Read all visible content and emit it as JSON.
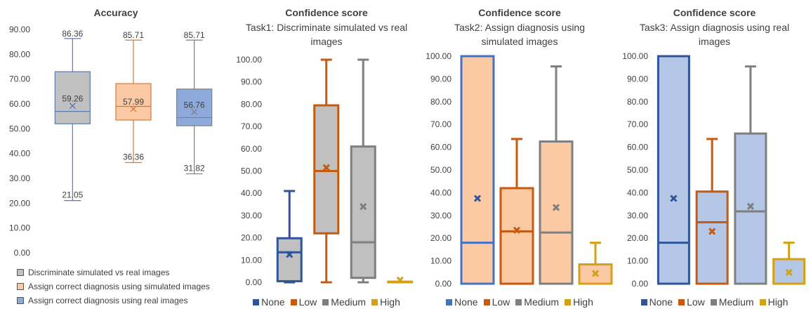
{
  "chart_data": [
    {
      "type": "box",
      "title": "Accuracy",
      "subtitle": "",
      "ylim": [
        0,
        90
      ],
      "yticks": [
        "0.00",
        "10.00",
        "20.00",
        "30.00",
        "40.00",
        "50.00",
        "60.00",
        "70.00",
        "80.00",
        "90.00"
      ],
      "ytick_values": [
        0,
        10,
        20,
        30,
        40,
        50,
        60,
        70,
        80,
        90
      ],
      "legend_position": "bottom",
      "series": [
        {
          "name": "Discriminate simulated vs real images",
          "fill": "#c0c0c0",
          "stroke": "#5b7ab5",
          "min": 21.05,
          "q1": 52,
          "median": 57,
          "q3": 73,
          "max": 86.36,
          "mean": 59.26,
          "labels": {
            "max": "86.36",
            "mean": "59.26",
            "min": "21.05"
          }
        },
        {
          "name": "Assign correct diagnosis using simulated images",
          "fill": "#fbcaa4",
          "stroke": "#d07a3e",
          "min": 36.36,
          "q1": 53.5,
          "median": 59,
          "q3": 68.2,
          "max": 85.71,
          "mean": 57.99,
          "labels": {
            "max": "85.71",
            "mean": "57.99",
            "min": "36.36"
          }
        },
        {
          "name": "Assign correct diagnosis using real images",
          "fill": "#8ea9db",
          "stroke": "#7f7f7f",
          "min": 31.82,
          "q1": 51.2,
          "median": 54.5,
          "q3": 66,
          "max": 85.71,
          "mean": 56.76,
          "labels": {
            "max": "85.71",
            "mean": "56.76",
            "min": "31.82"
          }
        }
      ]
    },
    {
      "type": "box",
      "title": "Confidence score",
      "subtitle": "Task1: Discriminate simulated vs real images",
      "ylim": [
        0,
        100
      ],
      "yticks": [
        "0.00",
        "10.00",
        "20.00",
        "30.00",
        "40.00",
        "50.00",
        "60.00",
        "70.00",
        "80.00",
        "90.00",
        "100.00"
      ],
      "ytick_values": [
        0,
        10,
        20,
        30,
        40,
        50,
        60,
        70,
        80,
        90,
        100
      ],
      "legend_position": "bottom",
      "series": [
        {
          "name": "None",
          "fill": "#c0c0c0",
          "stroke": "#2f5597",
          "marker": "#2f5597",
          "min": 0,
          "q1": 0.5,
          "median": 13.5,
          "q3": 19.8,
          "max": 41,
          "mean": 12.5
        },
        {
          "name": "Low",
          "fill": "#c0c0c0",
          "stroke": "#c55a11",
          "marker": "#c55a11",
          "min": 0,
          "q1": 22,
          "median": 50,
          "q3": 79.5,
          "max": 100,
          "mean": 51.5
        },
        {
          "name": "Medium",
          "fill": "#c0c0c0",
          "stroke": "#7f7f7f",
          "marker": "#7f7f7f",
          "min": 0,
          "q1": 2,
          "median": 18,
          "q3": 61,
          "max": 100,
          "mean": 34
        },
        {
          "name": "High",
          "fill": "#c0c0c0",
          "stroke": "#d4a017",
          "marker": "#d4a017",
          "min": 0,
          "q1": 0,
          "median": 0,
          "q3": 0.3,
          "max": 0.3,
          "mean": 1
        }
      ]
    },
    {
      "type": "box",
      "title": "Confidence score",
      "subtitle": "Task2: Assign diagnosis using simulated images",
      "ylim": [
        0,
        100
      ],
      "yticks": [
        "0.00",
        "10.00",
        "20.00",
        "30.00",
        "40.00",
        "50.00",
        "60.00",
        "70.00",
        "80.00",
        "90.00",
        "100.00"
      ],
      "ytick_values": [
        0,
        10,
        20,
        30,
        40,
        50,
        60,
        70,
        80,
        90,
        100
      ],
      "legend_position": "bottom",
      "series": [
        {
          "name": "None",
          "fill": "#fbcaa4",
          "stroke": "#4472c4",
          "marker": "#2f5597",
          "min": 0,
          "q1": 0,
          "median": 18,
          "q3": 100,
          "max": 100,
          "mean": 37.5
        },
        {
          "name": "Low",
          "fill": "#fbcaa4",
          "stroke": "#c55a11",
          "marker": "#c55a11",
          "min": 0,
          "q1": 0,
          "median": 23,
          "q3": 42,
          "max": 63.6,
          "mean": 23.5
        },
        {
          "name": "Medium",
          "fill": "#fbcaa4",
          "stroke": "#7f7f7f",
          "marker": "#7f7f7f",
          "min": 0,
          "q1": 0,
          "median": 22.5,
          "q3": 62.5,
          "max": 95.5,
          "mean": 33.5
        },
        {
          "name": "High",
          "fill": "#fbcaa4",
          "stroke": "#d4a017",
          "marker": "#d4a017",
          "min": 0,
          "q1": 0,
          "median": 0,
          "q3": 8.5,
          "max": 18,
          "mean": 4.5
        }
      ]
    },
    {
      "type": "box",
      "title": "Confidence score",
      "subtitle": "Task3: Assign diagnosis using real images",
      "ylim": [
        0,
        100
      ],
      "yticks": [
        "0.00",
        "10.00",
        "20.00",
        "30.00",
        "40.00",
        "50.00",
        "60.00",
        "70.00",
        "80.00",
        "90.00",
        "100.00"
      ],
      "ytick_values": [
        0,
        10,
        20,
        30,
        40,
        50,
        60,
        70,
        80,
        90,
        100
      ],
      "legend_position": "bottom",
      "series": [
        {
          "name": "None",
          "fill": "#b4c7e7",
          "stroke": "#2f5597",
          "marker": "#2f5597",
          "min": 0,
          "q1": 0,
          "median": 18,
          "q3": 100,
          "max": 100,
          "mean": 37.5
        },
        {
          "name": "Low",
          "fill": "#b4c7e7",
          "stroke": "#c55a11",
          "marker": "#c55a11",
          "min": 0,
          "q1": 0,
          "median": 27,
          "q3": 40.5,
          "max": 63.6,
          "mean": 23
        },
        {
          "name": "Medium",
          "fill": "#b4c7e7",
          "stroke": "#7f7f7f",
          "marker": "#7f7f7f",
          "min": 0,
          "q1": 0,
          "median": 31.8,
          "q3": 66,
          "max": 95.5,
          "mean": 34
        },
        {
          "name": "High",
          "fill": "#b4c7e7",
          "stroke": "#d4a017",
          "marker": "#d4a017",
          "min": 0,
          "q1": 0,
          "median": 0,
          "q3": 10.8,
          "max": 18,
          "mean": 5
        }
      ]
    }
  ]
}
